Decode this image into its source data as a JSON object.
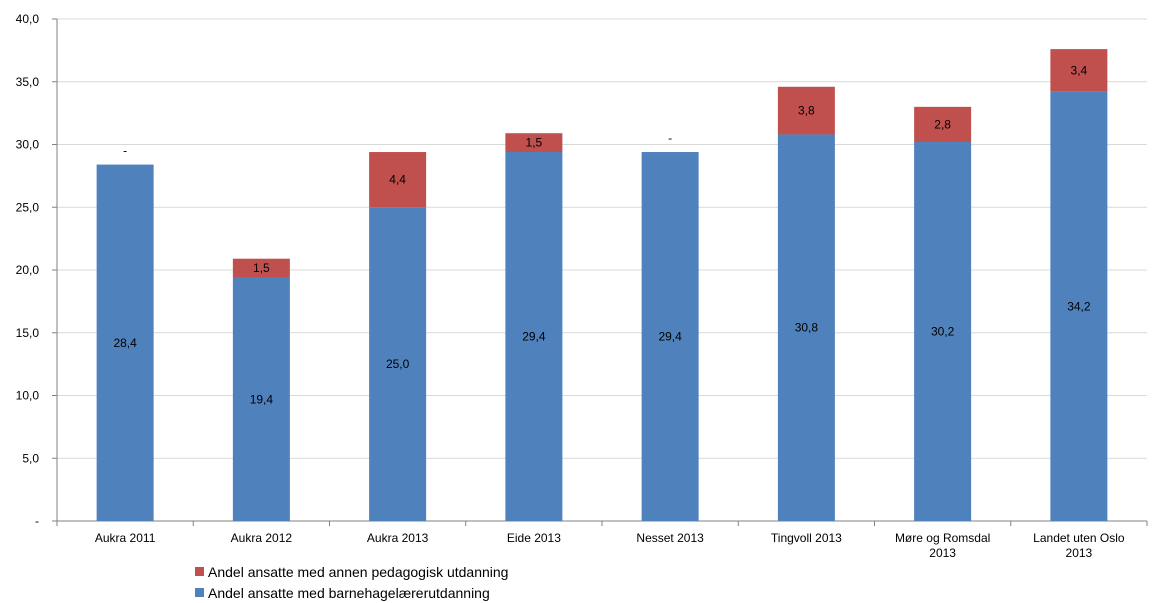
{
  "colors": {
    "series1": "#4F81BD",
    "series2": "#C0504D",
    "gridline": "#D9D9D9",
    "axis": "#808080"
  },
  "chart_data": {
    "type": "bar",
    "stacked": true,
    "categories": [
      [
        "Aukra 2011"
      ],
      [
        "Aukra 2012"
      ],
      [
        "Aukra 2013"
      ],
      [
        "Eide 2013"
      ],
      [
        "Nesset 2013"
      ],
      [
        "Tingvoll 2013"
      ],
      [
        "Møre og Romsdal",
        "2013"
      ],
      [
        "Landet uten Oslo",
        "2013"
      ]
    ],
    "series": [
      {
        "name": "Andel ansatte med barnehagelærerutdanning",
        "values": [
          28.4,
          19.4,
          25.0,
          29.4,
          29.4,
          30.8,
          30.2,
          34.2
        ],
        "labels": [
          "28,4",
          "19,4",
          "25,0",
          "29,4",
          "29,4",
          "30,8",
          "30,2",
          "34,2"
        ]
      },
      {
        "name": "Andel ansatte med annen pedagogisk utdanning",
        "values": [
          0,
          1.5,
          4.4,
          1.5,
          0,
          3.8,
          2.8,
          3.4
        ],
        "labels": [
          "-",
          "1,5",
          "4,4",
          "1,5",
          "-",
          "3,8",
          "2,8",
          "3,4"
        ]
      }
    ],
    "ylim": [
      0,
      40
    ],
    "yticks": [
      0,
      5,
      10,
      15,
      20,
      25,
      30,
      35,
      40
    ],
    "ytick_labels": [
      "-",
      "5,0",
      "10,0",
      "15,0",
      "20,0",
      "25,0",
      "30,0",
      "35,0",
      "40,0"
    ],
    "grid": true,
    "legend_position": "bottom-left",
    "legend_order": [
      1,
      0
    ]
  }
}
